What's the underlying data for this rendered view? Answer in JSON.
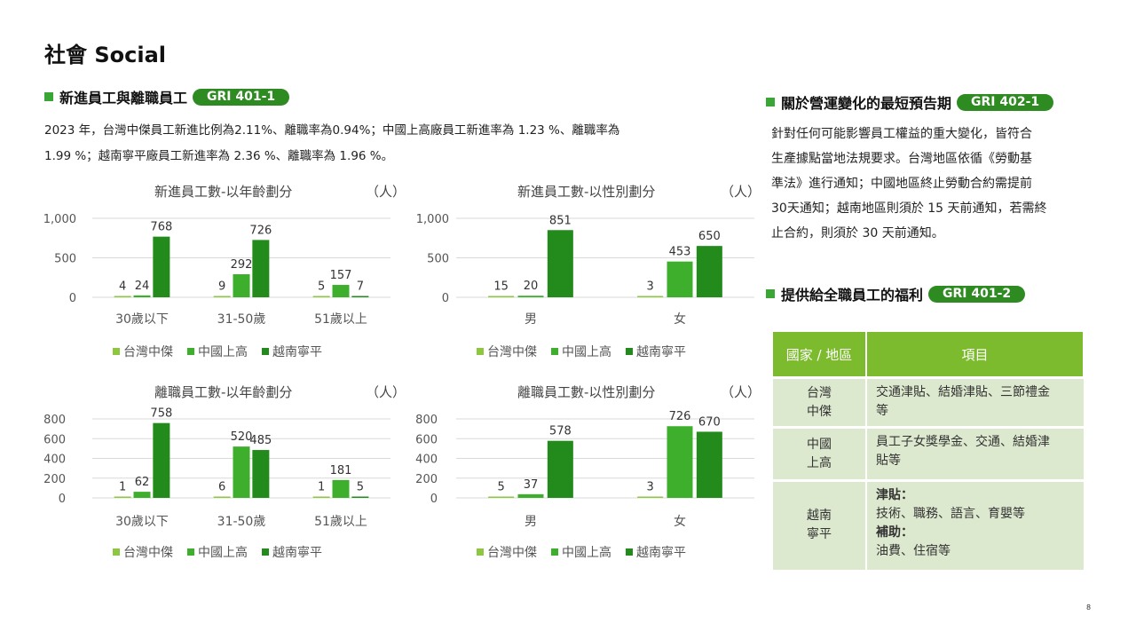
{
  "page": {
    "title": "社會 Social",
    "page_number": "8"
  },
  "colors": {
    "taiwan": "#8dc63f",
    "china": "#3daf2c",
    "vietnam": "#228b1c",
    "accent": "#2e8b22",
    "header": "#7dbb2e"
  },
  "section_new_hire": {
    "heading": "新進員工與離職員工",
    "badge": "GRI 401-1",
    "intro_line1": "2023 年，台灣中傑員工新進比例為2.11%、離職率為0.94%；中國上高廠員工新進率為 1.23 %、離職率為",
    "intro_line2": "1.99 %；越南寧平廠員工新進率為 2.36 %、離職率為 1.96 %。"
  },
  "section_notice": {
    "heading": "關於營運變化的最短預告期",
    "badge": "GRI 402-1",
    "line1": "針對任何可能影響員工權益的重大變化，皆符合",
    "line2": "生產據點當地法規要求。台灣地區依循《勞動基",
    "line3": "準法》進行通知；中國地區終止勞動合約需提前",
    "line4": "30天通知；越南地區則須於 15 天前通知，若需終",
    "line5": "止合約，則須於 30 天前通知。"
  },
  "section_benefits": {
    "heading": "提供給全職員工的福利",
    "badge": "GRI 401-2",
    "col_region": "國家 / 地區",
    "col_items": "項目",
    "rows": [
      {
        "region_l1": "台灣",
        "region_l2": "中傑",
        "items_l1": "交通津貼、結婚津貼、三節禮金",
        "items_l2": "等"
      },
      {
        "region_l1": "中國",
        "region_l2": "上高",
        "items_l1": "員工子女獎學金、交通、結婚津",
        "items_l2": "貼等"
      },
      {
        "region_l1": "越南",
        "region_l2": "寧平",
        "sub1": "津貼：",
        "sub1_text": "技術、職務、語言、育嬰等",
        "sub2": "補助：",
        "sub2_text": "油費、住宿等"
      }
    ]
  },
  "chart_data": [
    {
      "type": "bar",
      "title": "新進員工數-以年齡劃分",
      "unit": "（人）",
      "categories": [
        "30歲以下",
        "31-50歲",
        "51歲以上"
      ],
      "yticks": [
        "1,000",
        "500",
        "0"
      ],
      "ylim": [
        0,
        1000
      ],
      "series": [
        {
          "name": "台灣中傑",
          "values": [
            4,
            9,
            5
          ]
        },
        {
          "name": "中國上高",
          "values": [
            24,
            292,
            157
          ]
        },
        {
          "name": "越南寧平",
          "values": [
            768,
            726,
            7
          ]
        }
      ]
    },
    {
      "type": "bar",
      "title": "新進員工數-以性別劃分",
      "unit": "（人）",
      "categories": [
        "男",
        "女"
      ],
      "yticks": [
        "1,000",
        "500",
        "0"
      ],
      "ylim": [
        0,
        1000
      ],
      "series": [
        {
          "name": "台灣中傑",
          "values": [
            15,
            3
          ]
        },
        {
          "name": "中國上高",
          "values": [
            20,
            453
          ]
        },
        {
          "name": "越南寧平",
          "values": [
            851,
            650
          ]
        }
      ]
    },
    {
      "type": "bar",
      "title": "離職員工數-以年齡劃分",
      "unit": "（人）",
      "categories": [
        "30歲以下",
        "31-50歲",
        "51歲以上"
      ],
      "yticks": [
        "800",
        "600",
        "400",
        "200",
        "0"
      ],
      "ylim": [
        0,
        800
      ],
      "series": [
        {
          "name": "台灣中傑",
          "values": [
            1,
            6,
            1
          ]
        },
        {
          "name": "中國上高",
          "values": [
            62,
            520,
            181
          ]
        },
        {
          "name": "越南寧平",
          "values": [
            758,
            485,
            5
          ]
        }
      ]
    },
    {
      "type": "bar",
      "title": "離職員工數-以性別劃分",
      "unit": "（人）",
      "categories": [
        "男",
        "女"
      ],
      "yticks": [
        "800",
        "600",
        "400",
        "200",
        "0"
      ],
      "ylim": [
        0,
        800
      ],
      "series": [
        {
          "name": "台灣中傑",
          "values": [
            5,
            3
          ]
        },
        {
          "name": "中國上高",
          "values": [
            37,
            726
          ]
        },
        {
          "name": "越南寧平",
          "values": [
            578,
            670
          ]
        }
      ]
    }
  ]
}
